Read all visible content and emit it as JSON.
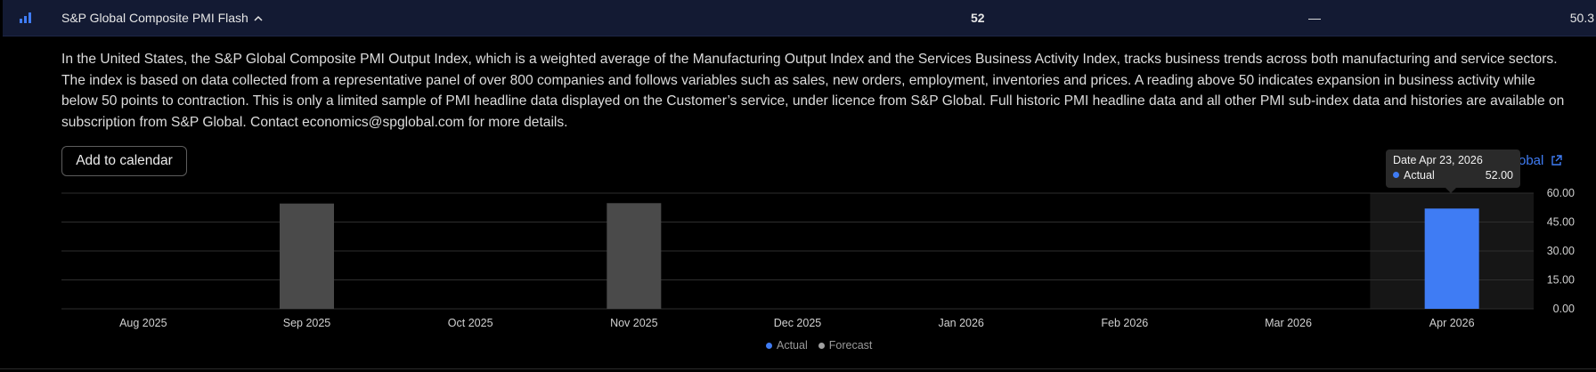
{
  "header": {
    "title": "S&P Global Composite PMI Flash",
    "actual": "52",
    "forecast": "—",
    "prior": "50.3"
  },
  "description": "In the United States, the S&P Global Composite PMI Output Index, which is a weighted average of the Manufacturing Output Index and the Services Business Activity Index, tracks business trends across both manufacturing and service sectors. The index is based on data collected from a representative panel of over 800 companies and follows variables such as sales, new orders, employment, inventories and prices. A reading above 50 indicates expansion in business activity while below 50 points to contraction. This is only a limited sample of PMI headline data displayed on the Customer’s service, under licence from S&P Global. Full historic PMI headline data and all other PMI sub-index data and histories are available on subscription from S&P Global. Contact economics@spglobal.com for more details.",
  "add_calendar_label": "Add to calendar",
  "source_link_label": "Global",
  "tooltip": {
    "date_label": "Date Apr 23, 2026",
    "series_label": "Actual",
    "value": "52.00"
  },
  "legend": {
    "actual": "Actual",
    "forecast": "Forecast"
  },
  "colors": {
    "actual": "#3f7cf4",
    "forecast": "#a0a0a0",
    "past_bar": "#4a4a4a",
    "header_bg": "#131a33"
  },
  "chart_data": {
    "type": "bar",
    "categories": [
      "Aug 2025",
      "Sep 2025",
      "Oct 2025",
      "Nov 2025",
      "Dec 2025",
      "Jan 2026",
      "Feb 2026",
      "Mar 2026",
      "Apr 2026"
    ],
    "series": [
      {
        "name": "Actual",
        "values": [
          null,
          54.6,
          null,
          54.8,
          null,
          null,
          null,
          null,
          52.0
        ]
      }
    ],
    "highlighted_category": "Apr 2026",
    "yticks": [
      "60.00",
      "45.00",
      "30.00",
      "15.00",
      "0.00"
    ],
    "ylim": [
      0,
      60
    ],
    "grid": true
  }
}
